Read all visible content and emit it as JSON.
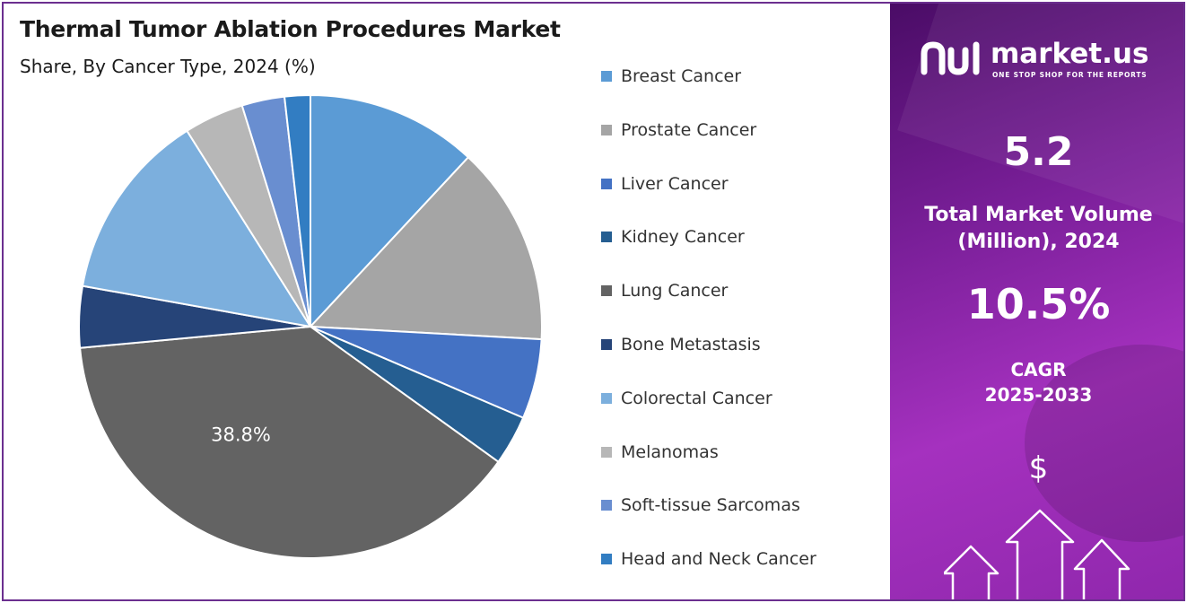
{
  "chart_data": {
    "type": "pie",
    "title": "Thermal Tumor Ablation Procedures Market",
    "subtitle": "Share, By Cancer Type, 2024 (%)",
    "categories": [
      "Breast Cancer",
      "Prostate Cancer",
      "Liver Cancer",
      "Kidney Cancer",
      "Lung Cancer",
      "Bone Metastasis",
      "Colorectal Cancer",
      "Melanomas",
      "Soft-tissue Sarcomas",
      "Head and Neck Cancer"
    ],
    "values": [
      12.0,
      14.0,
      5.6,
      3.5,
      38.8,
      4.3,
      13.3,
      4.2,
      3.0,
      1.8
    ],
    "colors": [
      "#5b9bd5",
      "#a5a5a5",
      "#4472c4",
      "#255e91",
      "#636363",
      "#264478",
      "#7cafdd",
      "#b7b7b7",
      "#698ed0",
      "#327dc2"
    ],
    "data_labels": [
      "",
      "",
      "",
      "",
      "38.8%",
      "",
      "",
      "",
      "",
      ""
    ],
    "legend_position": "right"
  },
  "panel": {
    "brand_name": "market.us",
    "brand_tagline": "ONE STOP SHOP FOR THE REPORTS",
    "market_volume": "5.2",
    "market_volume_label_line1": "Total Market Volume",
    "market_volume_label_line2": "(Million), 2024",
    "cagr_value": "10.5%",
    "cagr_label": "CAGR",
    "cagr_period": "2025-2033",
    "currency_symbol": "$"
  }
}
